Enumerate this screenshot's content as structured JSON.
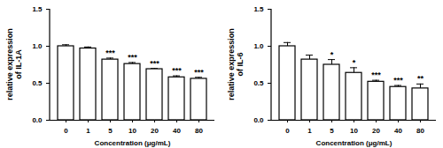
{
  "chart_data": [
    {
      "type": "bar",
      "categories": [
        "0",
        "1",
        "5",
        "10",
        "20",
        "40",
        "80"
      ],
      "values": [
        1.0,
        0.97,
        0.82,
        0.76,
        0.69,
        0.58,
        0.56
      ],
      "errors": [
        0.02,
        0.02,
        0.02,
        0.02,
        0.01,
        0.02,
        0.02
      ],
      "significance": [
        "",
        "",
        "***",
        "***",
        "***",
        "***",
        "***"
      ],
      "x_label": "Concentration (μg/mL)",
      "y_label": "relative expression of IL-1A",
      "color": "#ffffff",
      "ylim": [
        0,
        1.5
      ],
      "yticks": [
        {
          "value": 0,
          "label": "0.0"
        },
        {
          "value": 0.5,
          "label": "0.5"
        },
        {
          "value": 1.0,
          "label": "1.0"
        },
        {
          "value": 1.5,
          "label": "1.5"
        }
      ]
    },
    {
      "type": "bar",
      "categories": [
        "0",
        "1",
        "5",
        "10",
        "20",
        "40",
        "80"
      ],
      "values": [
        1.0,
        0.82,
        0.75,
        0.64,
        0.52,
        0.45,
        0.43
      ],
      "errors": [
        0.05,
        0.06,
        0.07,
        0.07,
        0.02,
        0.02,
        0.06
      ],
      "significance": [
        "",
        "",
        "*",
        "*",
        "***",
        "***",
        "**"
      ],
      "x_label": "Concentration (μg/mL)",
      "y_label": "relative expression of IL-6",
      "color": "#ffffff",
      "ylim": [
        0,
        1.5
      ],
      "yticks": [
        {
          "value": 0,
          "label": "0.0"
        },
        {
          "value": 0.5,
          "label": "0.5"
        },
        {
          "value": 1.0,
          "label": "1.0"
        },
        {
          "value": 1.5,
          "label": "1.5"
        }
      ]
    }
  ]
}
